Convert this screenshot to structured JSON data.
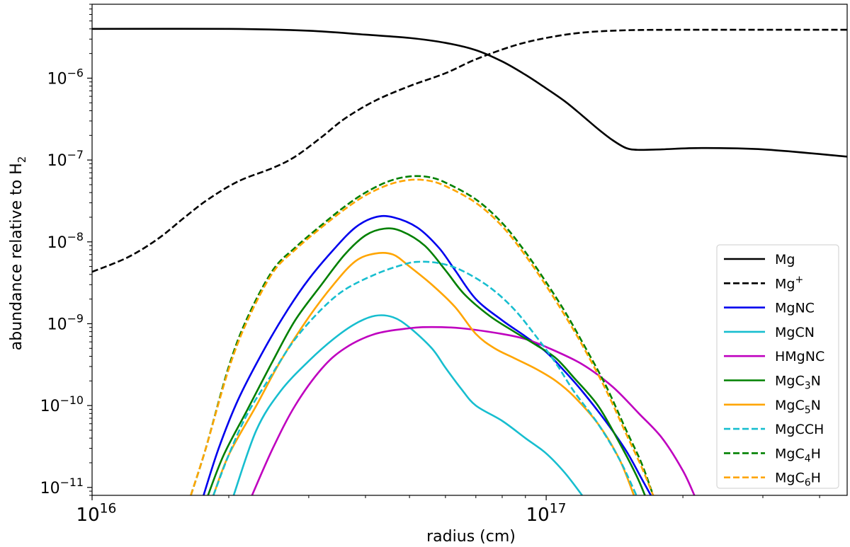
{
  "chart_data": {
    "type": "line",
    "xlabel": "radius (cm)",
    "ylabel": "abundance relative to H",
    "ylabel_sub": "2",
    "xscale": "log",
    "yscale": "log",
    "xlim": [
      1e+16,
      4.6e+17
    ],
    "ylim": [
      8e-12,
      8e-06
    ],
    "grid": false,
    "legend_position": "bottom-right",
    "x_ticks": [
      {
        "value": 1e+16,
        "base": "10",
        "exp": "16"
      },
      {
        "value": 1e+17,
        "base": "10",
        "exp": "17"
      }
    ],
    "y_ticks": [
      {
        "value": 1e-11,
        "base": "10",
        "exp": "−11"
      },
      {
        "value": 1e-10,
        "base": "10",
        "exp": "−10"
      },
      {
        "value": 1e-09,
        "base": "10",
        "exp": "−9"
      },
      {
        "value": 1e-08,
        "base": "10",
        "exp": "−8"
      },
      {
        "value": 1e-07,
        "base": "10",
        "exp": "−7"
      },
      {
        "value": 1e-06,
        "base": "10",
        "exp": "−6"
      }
    ],
    "series": [
      {
        "name": "Mg",
        "label_main": "Mg",
        "label_sub": "",
        "label_sup": "",
        "label_tail": "",
        "color": "#000000",
        "dash": "solid",
        "points": [
          [
            1e+16,
            4e-06
          ],
          [
            2e+16,
            4e-06
          ],
          [
            3e+16,
            3.8e-06
          ],
          [
            4e+16,
            3.4e-06
          ],
          [
            5e+16,
            3.1e-06
          ],
          [
            6e+16,
            2.7e-06
          ],
          [
            7e+16,
            2.2e-06
          ],
          [
            8e+16,
            1.6e-06
          ],
          [
            9e+16,
            1.1e-06
          ],
          [
            1e+17,
            7.5e-07
          ],
          [
            1.1e+17,
            5.2e-07
          ],
          [
            1.2e+17,
            3.5e-07
          ],
          [
            1.3e+17,
            2.4e-07
          ],
          [
            1.4e+17,
            1.75e-07
          ],
          [
            1.5e+17,
            1.4e-07
          ],
          [
            1.6e+17,
            1.33e-07
          ],
          [
            1.8e+17,
            1.35e-07
          ],
          [
            2.2e+17,
            1.4e-07
          ],
          [
            3e+17,
            1.35e-07
          ],
          [
            4.6e+17,
            1.1e-07
          ]
        ]
      },
      {
        "name": "Mg+",
        "label_main": "Mg",
        "label_sub": "",
        "label_sup": "+",
        "label_tail": "",
        "color": "#000000",
        "dash": "dashed",
        "points": [
          [
            1e+16,
            4.3e-09
          ],
          [
            1.2e+16,
            6.5e-09
          ],
          [
            1.4e+16,
            1.1e-08
          ],
          [
            1.6e+16,
            2e-08
          ],
          [
            1.8e+16,
            3.3e-08
          ],
          [
            2.1e+16,
            5.5e-08
          ],
          [
            2.5e+16,
            8e-08
          ],
          [
            2.8e+16,
            1.1e-07
          ],
          [
            3.2e+16,
            1.9e-07
          ],
          [
            3.6e+16,
            3.2e-07
          ],
          [
            4.2e+16,
            5.3e-07
          ],
          [
            5e+16,
            8e-07
          ],
          [
            6e+16,
            1.15e-06
          ],
          [
            7e+16,
            1.7e-06
          ],
          [
            8.5e+16,
            2.5e-06
          ],
          [
            1e+17,
            3.1e-06
          ],
          [
            1.2e+17,
            3.6e-06
          ],
          [
            1.5e+17,
            3.85e-06
          ],
          [
            2e+17,
            3.9e-06
          ],
          [
            3e+17,
            3.9e-06
          ],
          [
            4.6e+17,
            3.9e-06
          ]
        ]
      },
      {
        "name": "MgNC",
        "label_main": "MgNC",
        "label_sub": "",
        "label_sup": "",
        "label_tail": "",
        "color": "#0000ee",
        "dash": "solid",
        "points": [
          [
            1.76e+16,
            8e-12
          ],
          [
            1.9e+16,
            3e-11
          ],
          [
            2.1e+16,
            1.2e-10
          ],
          [
            2.4e+16,
            5e-10
          ],
          [
            2.7e+16,
            1.5e-09
          ],
          [
            3e+16,
            3.5e-09
          ],
          [
            3.4e+16,
            8e-09
          ],
          [
            3.8e+16,
            1.5e-08
          ],
          [
            4.2e+16,
            2e-08
          ],
          [
            4.6e+16,
            2e-08
          ],
          [
            5.2e+16,
            1.5e-08
          ],
          [
            5.8e+16,
            8.5e-09
          ],
          [
            6.3e+16,
            4.5e-09
          ],
          [
            7e+16,
            2e-09
          ],
          [
            8e+16,
            1.1e-09
          ],
          [
            9e+16,
            7e-10
          ],
          [
            1e+17,
            4.5e-10
          ],
          [
            1.1e+17,
            2.6e-10
          ],
          [
            1.2e+17,
            1.5e-10
          ],
          [
            1.35e+17,
            6.5e-11
          ],
          [
            1.5e+17,
            2.8e-11
          ],
          [
            1.62e+17,
            1.3e-11
          ],
          [
            1.7e+17,
            8e-12
          ]
        ]
      },
      {
        "name": "MgCN",
        "label_main": "MgCN",
        "label_sub": "",
        "label_sup": "",
        "label_tail": "",
        "color": "#17becf",
        "dash": "solid",
        "points": [
          [
            2.05e+16,
            8e-12
          ],
          [
            2.3e+16,
            5e-11
          ],
          [
            2.6e+16,
            1.5e-10
          ],
          [
            3e+16,
            3.5e-10
          ],
          [
            3.4e+16,
            6.5e-10
          ],
          [
            3.8e+16,
            1e-09
          ],
          [
            4.2e+16,
            1.25e-09
          ],
          [
            4.6e+16,
            1.2e-09
          ],
          [
            5e+16,
            9e-10
          ],
          [
            5.6e+16,
            5e-10
          ],
          [
            6e+16,
            2.9e-10
          ],
          [
            6.5e+16,
            1.6e-10
          ],
          [
            7e+16,
            1e-10
          ],
          [
            8e+16,
            6.5e-11
          ],
          [
            9e+16,
            4e-11
          ],
          [
            1e+17,
            2.6e-11
          ],
          [
            1.1e+17,
            1.5e-11
          ],
          [
            1.2e+17,
            8e-12
          ]
        ]
      },
      {
        "name": "HMgNC",
        "label_main": "HMgNC",
        "label_sub": "",
        "label_sup": "",
        "label_tail": "",
        "color": "#bf00bf",
        "dash": "solid",
        "points": [
          [
            2.25e+16,
            8e-12
          ],
          [
            2.5e+16,
            3e-11
          ],
          [
            2.8e+16,
            1e-10
          ],
          [
            3.2e+16,
            2.8e-10
          ],
          [
            3.6e+16,
            5e-10
          ],
          [
            4.2e+16,
            7.5e-10
          ],
          [
            5e+16,
            8.8e-10
          ],
          [
            5.6e+16,
            9.1e-10
          ],
          [
            6.5e+16,
            8.8e-10
          ],
          [
            8e+16,
            7.5e-10
          ],
          [
            9e+16,
            6.5e-10
          ],
          [
            1e+17,
            5.2e-10
          ],
          [
            1.2e+17,
            3.2e-10
          ],
          [
            1.4e+17,
            1.7e-10
          ],
          [
            1.6e+17,
            8e-11
          ],
          [
            1.8e+17,
            4e-11
          ],
          [
            2e+17,
            1.6e-11
          ],
          [
            2.12e+17,
            8e-12
          ]
        ]
      },
      {
        "name": "MgC3N",
        "label_main": "MgC",
        "label_sub": "3",
        "label_sup": "",
        "label_tail": "N",
        "color": "#008000",
        "dash": "solid",
        "points": [
          [
            1.8e+16,
            8e-12
          ],
          [
            1.95e+16,
            2.5e-11
          ],
          [
            2.2e+16,
            9e-11
          ],
          [
            2.5e+16,
            3.5e-10
          ],
          [
            2.8e+16,
            1.1e-09
          ],
          [
            3.2e+16,
            3e-09
          ],
          [
            3.6e+16,
            7e-09
          ],
          [
            4e+16,
            1.2e-08
          ],
          [
            4.4e+16,
            1.45e-08
          ],
          [
            4.8e+16,
            1.35e-08
          ],
          [
            5.4e+16,
            9e-09
          ],
          [
            6e+16,
            4.5e-09
          ],
          [
            6.6e+16,
            2.3e-09
          ],
          [
            7.5e+16,
            1.25e-09
          ],
          [
            8.5e+16,
            8e-10
          ],
          [
            9.5e+16,
            5.5e-10
          ],
          [
            1.05e+17,
            3.8e-10
          ],
          [
            1.15e+17,
            2.2e-10
          ],
          [
            1.3e+17,
            1e-10
          ],
          [
            1.45e+17,
            3.5e-11
          ],
          [
            1.58e+17,
            1.4e-11
          ],
          [
            1.65e+17,
            8e-12
          ]
        ]
      },
      {
        "name": "MgC5N",
        "label_main": "MgC",
        "label_sub": "5",
        "label_sup": "",
        "label_tail": "N",
        "color": "#ffa500",
        "dash": "solid",
        "points": [
          [
            1.85e+16,
            8e-12
          ],
          [
            2e+16,
            2.5e-11
          ],
          [
            2.3e+16,
            1e-10
          ],
          [
            2.6e+16,
            3.5e-10
          ],
          [
            3e+16,
            1.2e-09
          ],
          [
            3.4e+16,
            3e-09
          ],
          [
            3.8e+16,
            5.8e-09
          ],
          [
            4.2e+16,
            7.2e-09
          ],
          [
            4.6e+16,
            7e-09
          ],
          [
            5e+16,
            5e-09
          ],
          [
            5.6e+16,
            3e-09
          ],
          [
            6.3e+16,
            1.6e-09
          ],
          [
            7e+16,
            7.5e-10
          ],
          [
            7.7e+16,
            5e-10
          ],
          [
            8.5e+16,
            3.8e-10
          ],
          [
            9.5e+16,
            2.8e-10
          ],
          [
            1.05e+17,
            2e-10
          ],
          [
            1.15e+17,
            1.3e-10
          ],
          [
            1.3e+17,
            6e-11
          ],
          [
            1.45e+17,
            2.2e-11
          ],
          [
            1.56e+17,
            8e-12
          ]
        ]
      },
      {
        "name": "MgCCH",
        "label_main": "MgCCH",
        "label_sub": "",
        "label_sup": "",
        "label_tail": "",
        "color": "#17becf",
        "dash": "dashed",
        "points": [
          [
            1.85e+16,
            8e-12
          ],
          [
            2e+16,
            2.5e-11
          ],
          [
            2.2e+16,
            8e-11
          ],
          [
            2.5e+16,
            2.5e-10
          ],
          [
            2.8e+16,
            6.5e-10
          ],
          [
            3.2e+16,
            1.5e-09
          ],
          [
            3.6e+16,
            2.6e-09
          ],
          [
            4.2e+16,
            4e-09
          ],
          [
            4.8e+16,
            5.2e-09
          ],
          [
            5.2e+16,
            5.7e-09
          ],
          [
            5.8e+16,
            5.5e-09
          ],
          [
            6.5e+16,
            4.5e-09
          ],
          [
            7.5e+16,
            2.8e-09
          ],
          [
            8.5e+16,
            1.5e-09
          ],
          [
            9.5e+16,
            7e-10
          ],
          [
            1.05e+17,
            3.3e-10
          ],
          [
            1.15e+17,
            1.5e-10
          ],
          [
            1.3e+17,
            6e-11
          ],
          [
            1.45e+17,
            2.2e-11
          ],
          [
            1.58e+17,
            8e-12
          ]
        ]
      },
      {
        "name": "MgC4H",
        "label_main": "MgC",
        "label_sub": "4",
        "label_sup": "",
        "label_tail": "H",
        "color": "#008000",
        "dash": "dashed",
        "points": [
          [
            1.65e+16,
            8e-12
          ],
          [
            1.78e+16,
            3e-11
          ],
          [
            2e+16,
            3e-10
          ],
          [
            2.2e+16,
            1.2e-09
          ],
          [
            2.5e+16,
            4.5e-09
          ],
          [
            2.8e+16,
            8.5e-09
          ],
          [
            3.2e+16,
            1.6e-08
          ],
          [
            3.6e+16,
            2.7e-08
          ],
          [
            4e+16,
            4e-08
          ],
          [
            4.5e+16,
            5.5e-08
          ],
          [
            5e+16,
            6.3e-08
          ],
          [
            5.5e+16,
            6.2e-08
          ],
          [
            6e+16,
            5.3e-08
          ],
          [
            7e+16,
            3.3e-08
          ],
          [
            8e+16,
            1.7e-08
          ],
          [
            9e+16,
            7.5e-09
          ],
          [
            1e+17,
            3.2e-09
          ],
          [
            1.1e+17,
            1.4e-09
          ],
          [
            1.2e+17,
            6e-10
          ],
          [
            1.35e+17,
            1.8e-10
          ],
          [
            1.5e+17,
            5e-11
          ],
          [
            1.62e+17,
            2e-11
          ],
          [
            1.72e+17,
            8e-12
          ]
        ]
      },
      {
        "name": "MgC6H",
        "label_main": "MgC",
        "label_sub": "6",
        "label_sup": "",
        "label_tail": "H",
        "color": "#ffa500",
        "dash": "dashed",
        "points": [
          [
            1.65e+16,
            8e-12
          ],
          [
            1.78e+16,
            3e-11
          ],
          [
            2e+16,
            2.8e-10
          ],
          [
            2.2e+16,
            1.1e-09
          ],
          [
            2.5e+16,
            4.2e-09
          ],
          [
            2.8e+16,
            8e-09
          ],
          [
            3.2e+16,
            1.5e-08
          ],
          [
            3.6e+16,
            2.5e-08
          ],
          [
            4e+16,
            3.7e-08
          ],
          [
            4.5e+16,
            5e-08
          ],
          [
            5e+16,
            5.7e-08
          ],
          [
            5.5e+16,
            5.6e-08
          ],
          [
            6e+16,
            4.8e-08
          ],
          [
            7e+16,
            3e-08
          ],
          [
            8e+16,
            1.55e-08
          ],
          [
            9e+16,
            6.8e-09
          ],
          [
            1e+17,
            2.9e-09
          ],
          [
            1.1e+17,
            1.25e-09
          ],
          [
            1.2e+17,
            5.5e-10
          ],
          [
            1.35e+17,
            1.6e-10
          ],
          [
            1.5e+17,
            4.5e-11
          ],
          [
            1.62e+17,
            1.8e-11
          ],
          [
            1.72e+17,
            8e-12
          ]
        ]
      }
    ]
  }
}
